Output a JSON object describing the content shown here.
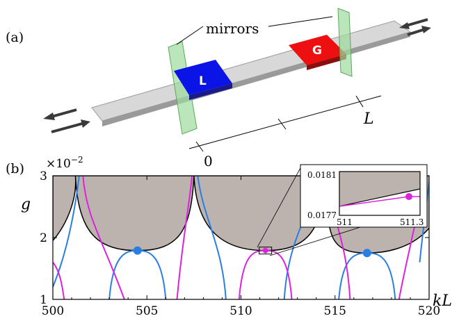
{
  "panel_a": {
    "label": "(a)",
    "mirrors_label": "mirrors",
    "lossy_label": "L",
    "gain_label": "G",
    "axis_zero": "0",
    "axis_end": "L",
    "colors": {
      "loss": "#0a14e6",
      "gain": "#ee1010",
      "mirror": "#90d890",
      "waveguide": "#cfcfcf"
    }
  },
  "panel_b": {
    "label": "(b)",
    "exponent_label": "×10",
    "exponent_power": "−2",
    "ylabel": "g",
    "xlabel": "kL",
    "inset": {
      "y_top": "0.0181",
      "y_bottom": "0.0177",
      "x_left": "511",
      "x_right": "511.3"
    }
  },
  "chart_data": {
    "type": "line",
    "xlabel": "kL",
    "ylabel": "g",
    "xlim": [
      500,
      520
    ],
    "ylim": [
      1,
      3
    ],
    "y_scale_factor": "×10^-2",
    "x_ticks": [
      "500",
      "505",
      "510",
      "515",
      "520"
    ],
    "y_ticks": [
      "1",
      "2",
      "3"
    ],
    "shaded_region_color": "#bdb3ae",
    "boundary_dip_minima": [
      {
        "x": 504.5,
        "y": 1.79
      },
      {
        "x": 511.3,
        "y": 1.79
      },
      {
        "x": 516.7,
        "y": 1.75
      }
    ],
    "series": [
      {
        "color": "#2a7de1",
        "points": [
          {
            "x": 504.5,
            "y": 1.79
          },
          {
            "x": 516.7,
            "y": 1.75
          }
        ]
      },
      {
        "color": "#dd22dd",
        "points": [
          {
            "x": 511.3,
            "y": 1.79
          }
        ]
      }
    ]
  }
}
